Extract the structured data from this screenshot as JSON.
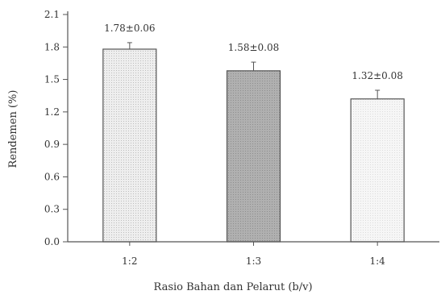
{
  "chart_data": {
    "type": "bar",
    "title": "",
    "xlabel": "Rasio Bahan dan Pelarut (b/v)",
    "ylabel": "Rendemen (%)",
    "categories": [
      "1:2",
      "1:3",
      "1:4"
    ],
    "values": [
      1.78,
      1.58,
      1.32
    ],
    "errors": [
      0.06,
      0.08,
      0.08
    ],
    "data_labels": [
      "1.78±0.06",
      "1.58±0.08",
      "1.32±0.08"
    ],
    "ylim": [
      0.0,
      2.1
    ],
    "yticks": [
      "0.0",
      "0.3",
      "0.6",
      "0.9",
      "1.2",
      "1.5",
      "1.8",
      "2.1"
    ],
    "grid": false,
    "legend": "none",
    "bar_fills": [
      "#e6e6e6",
      "#b2b2b2",
      "#f4f4f4"
    ],
    "axis_color": "#555555"
  }
}
